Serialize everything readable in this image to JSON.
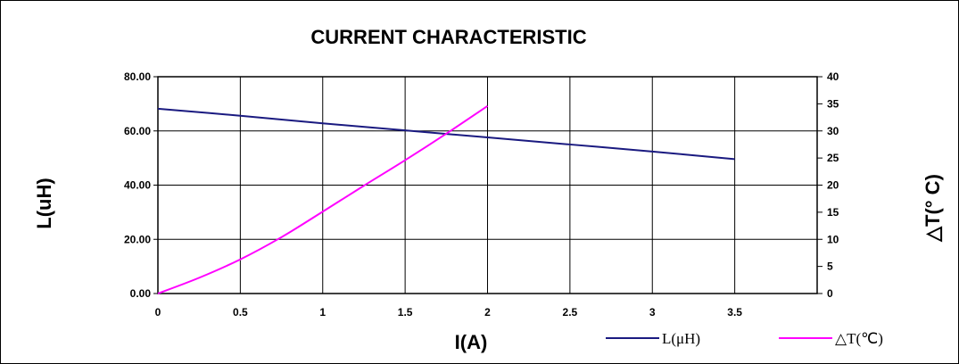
{
  "chart_data": {
    "type": "line",
    "title": "CURRENT CHARACTERISTIC",
    "xlabel": "I(A)",
    "ylabel": "L(uH)",
    "ylabel_right": "△T(° C)",
    "xlim": [
      0,
      4
    ],
    "ylim": [
      0,
      80
    ],
    "ylim_right": [
      0,
      40
    ],
    "x_ticks": [
      "0",
      "0.5",
      "1",
      "1.5",
      "2",
      "2.5",
      "3",
      "3.5"
    ],
    "y_ticks": [
      "0.00",
      "20.00",
      "40.00",
      "60.00",
      "80.00"
    ],
    "y_ticks_right": [
      "0",
      "5",
      "10",
      "15",
      "20",
      "25",
      "30",
      "35",
      "40"
    ],
    "grid": true,
    "legend_position": "bottom-right",
    "series": [
      {
        "name": "L(μH)",
        "axis": "left",
        "color": "#1a1a80",
        "x": [
          0,
          0.5,
          1,
          1.5,
          2,
          2.5,
          3,
          3.5
        ],
        "y": [
          68.2,
          65.6,
          62.8,
          60.2,
          57.6,
          55.0,
          52.4,
          49.6
        ]
      },
      {
        "name": "△T(℃)",
        "axis": "right",
        "color": "#ff00ff",
        "x": [
          0,
          0.25,
          0.5,
          0.75,
          1,
          1.25,
          1.5,
          1.75,
          2
        ],
        "y": [
          0,
          2.9,
          6.3,
          10.4,
          15.1,
          19.9,
          24.6,
          29.5,
          34.6
        ]
      }
    ]
  }
}
